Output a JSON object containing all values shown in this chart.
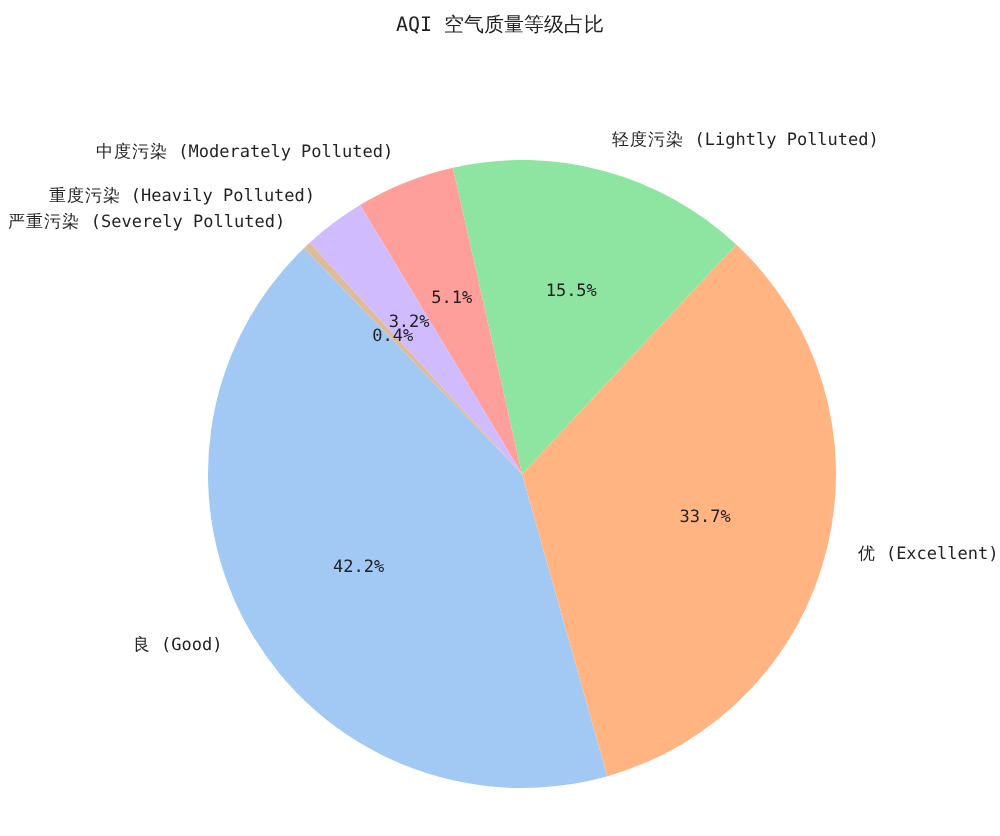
{
  "chart_data": {
    "type": "pie",
    "title": "AQI 空气质量等级占比",
    "categories": [
      "良 (Good)",
      "优 (Excellent)",
      "轻度污染 (Lightly Polluted)",
      "中度污染 (Moderately Polluted)",
      "重度污染 (Heavily Polluted)",
      "严重污染 (Severely Polluted)"
    ],
    "values": [
      42.2,
      33.7,
      15.5,
      5.1,
      3.2,
      0.4
    ],
    "value_labels": [
      "42.2%",
      "33.7%",
      "15.5%",
      "5.1%",
      "3.2%",
      "0.4%"
    ],
    "colors": [
      "#a1c9f4",
      "#ffb482",
      "#8de5a1",
      "#ff9f9b",
      "#d0bbff",
      "#debb9b"
    ]
  }
}
